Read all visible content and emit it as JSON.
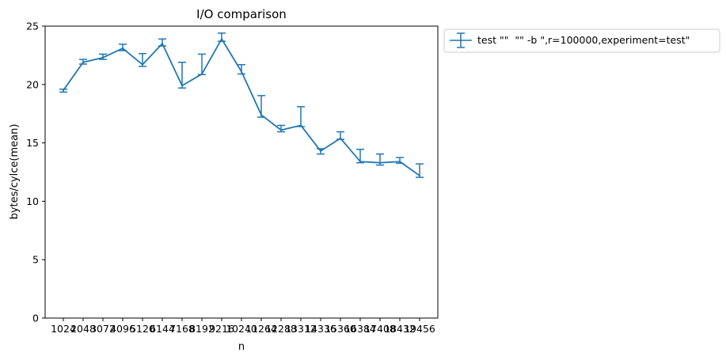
{
  "chart_data": {
    "type": "line",
    "title": "I/O comparison",
    "xlabel": "n",
    "ylabel": "bytes/cylce(mean)",
    "categories": [
      "1024",
      "2048",
      "3072",
      "4096",
      "5120",
      "6144",
      "7168",
      "8192",
      "9216",
      "10240",
      "11264",
      "12288",
      "13312",
      "14336",
      "15360",
      "16384",
      "17408",
      "18432",
      "19456"
    ],
    "ylim": [
      0,
      25
    ],
    "yticks": [
      0,
      5,
      10,
      15,
      20,
      25
    ],
    "grid": false,
    "legend_position": "outside-top-right",
    "series": [
      {
        "name": "test \"\"  \"\" -b \",r=100000,experiment=test\"",
        "color": "#1f77b4",
        "values": [
          19.5,
          21.9,
          22.3,
          23.1,
          21.7,
          23.5,
          19.9,
          20.9,
          23.9,
          21.1,
          17.4,
          16.1,
          16.5,
          14.3,
          15.4,
          13.4,
          13.3,
          13.4,
          12.2
        ],
        "err_low": [
          19.35,
          21.75,
          22.15,
          22.9,
          21.55,
          23.3,
          19.7,
          20.85,
          23.7,
          20.9,
          17.2,
          15.95,
          16.4,
          14.05,
          15.3,
          13.3,
          13.1,
          13.25,
          12.05
        ],
        "err_high": [
          19.6,
          22.15,
          22.6,
          23.45,
          22.65,
          23.9,
          21.9,
          22.6,
          24.4,
          21.7,
          19.05,
          16.5,
          18.1,
          14.5,
          15.95,
          14.45,
          14.05,
          13.75,
          13.2
        ]
      }
    ]
  }
}
